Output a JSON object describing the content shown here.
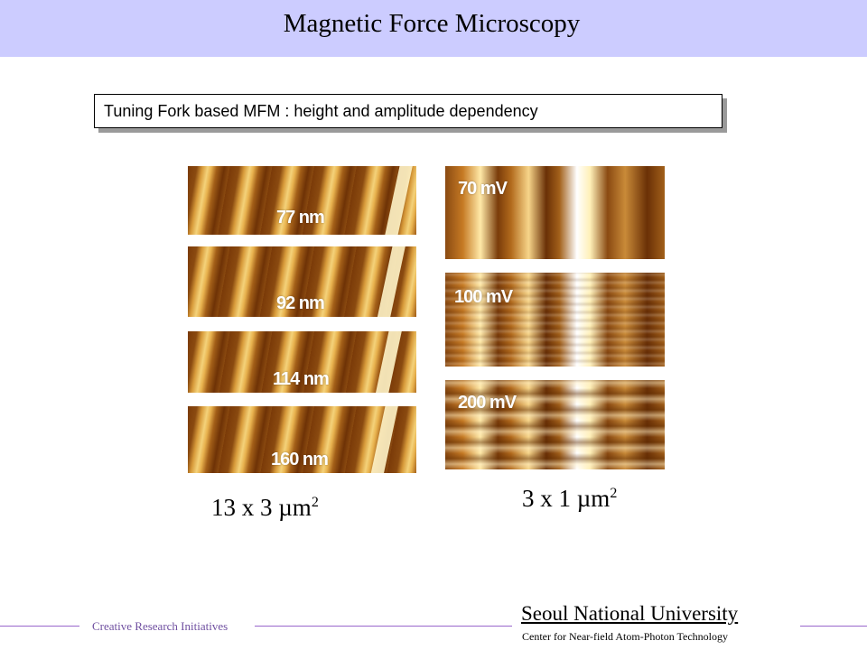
{
  "title": "Magnetic Force Microscopy",
  "subtitle": "Tuning Fork based MFM : height and amplitude dependency",
  "height_series": {
    "panels": [
      {
        "label": "77 nm"
      },
      {
        "label": "92 nm"
      },
      {
        "label": "114 nm"
      },
      {
        "label": "160 nm"
      }
    ],
    "caption_main": "13 x 3 ",
    "caption_unit": "µm",
    "caption_exp": "2"
  },
  "amplitude_series": {
    "panels": [
      {
        "label": "70 mV"
      },
      {
        "label": "100 mV"
      },
      {
        "label": "200 mV"
      }
    ],
    "caption_main": "3 x 1 ",
    "caption_unit": "µm",
    "caption_exp": "2"
  },
  "footer": {
    "left_text": "Creative Research Initiatives",
    "institution": "Seoul National University",
    "center": "Center for Near-field Atom-Photon Technology"
  },
  "colors": {
    "title_bar": "#ccccff",
    "footer_line": "#9966cc",
    "footer_text": "#6f4fa0"
  }
}
